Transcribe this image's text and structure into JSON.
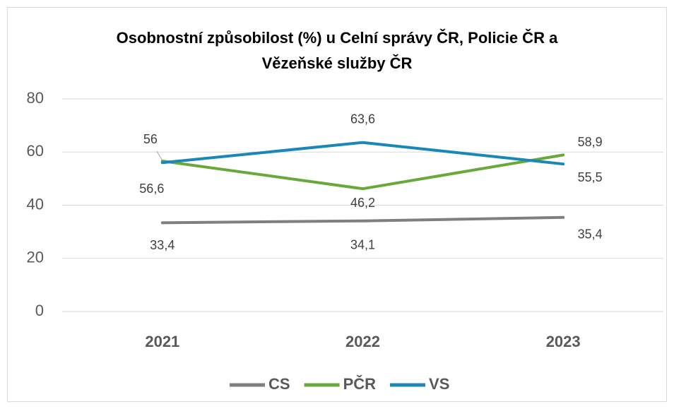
{
  "chart_data": {
    "type": "line",
    "title": "Osobnostní způsobilost (%) u Celní správy ČR, Policie ČR a Vězeňské služby ČR",
    "categories": [
      "2021",
      "2022",
      "2023"
    ],
    "series": [
      {
        "name": "CS",
        "color": "#7f7f7f",
        "values": [
          33.4,
          34.1,
          35.4
        ],
        "value_labels": [
          "33,4",
          "34,1",
          "35,4"
        ]
      },
      {
        "name": "PČR",
        "color": "#69a83a",
        "values": [
          56.6,
          46.2,
          58.9
        ],
        "value_labels": [
          "56,6",
          "46,2",
          "58,9"
        ]
      },
      {
        "name": "VS",
        "color": "#1a87b6",
        "values": [
          56,
          63.6,
          55.5
        ],
        "value_labels": [
          "56",
          "63,6",
          "55,5"
        ]
      }
    ],
    "ylim": [
      0,
      80
    ],
    "yticks": [
      0,
      20,
      40,
      60,
      80
    ],
    "grid": true,
    "legend": "bottom"
  }
}
